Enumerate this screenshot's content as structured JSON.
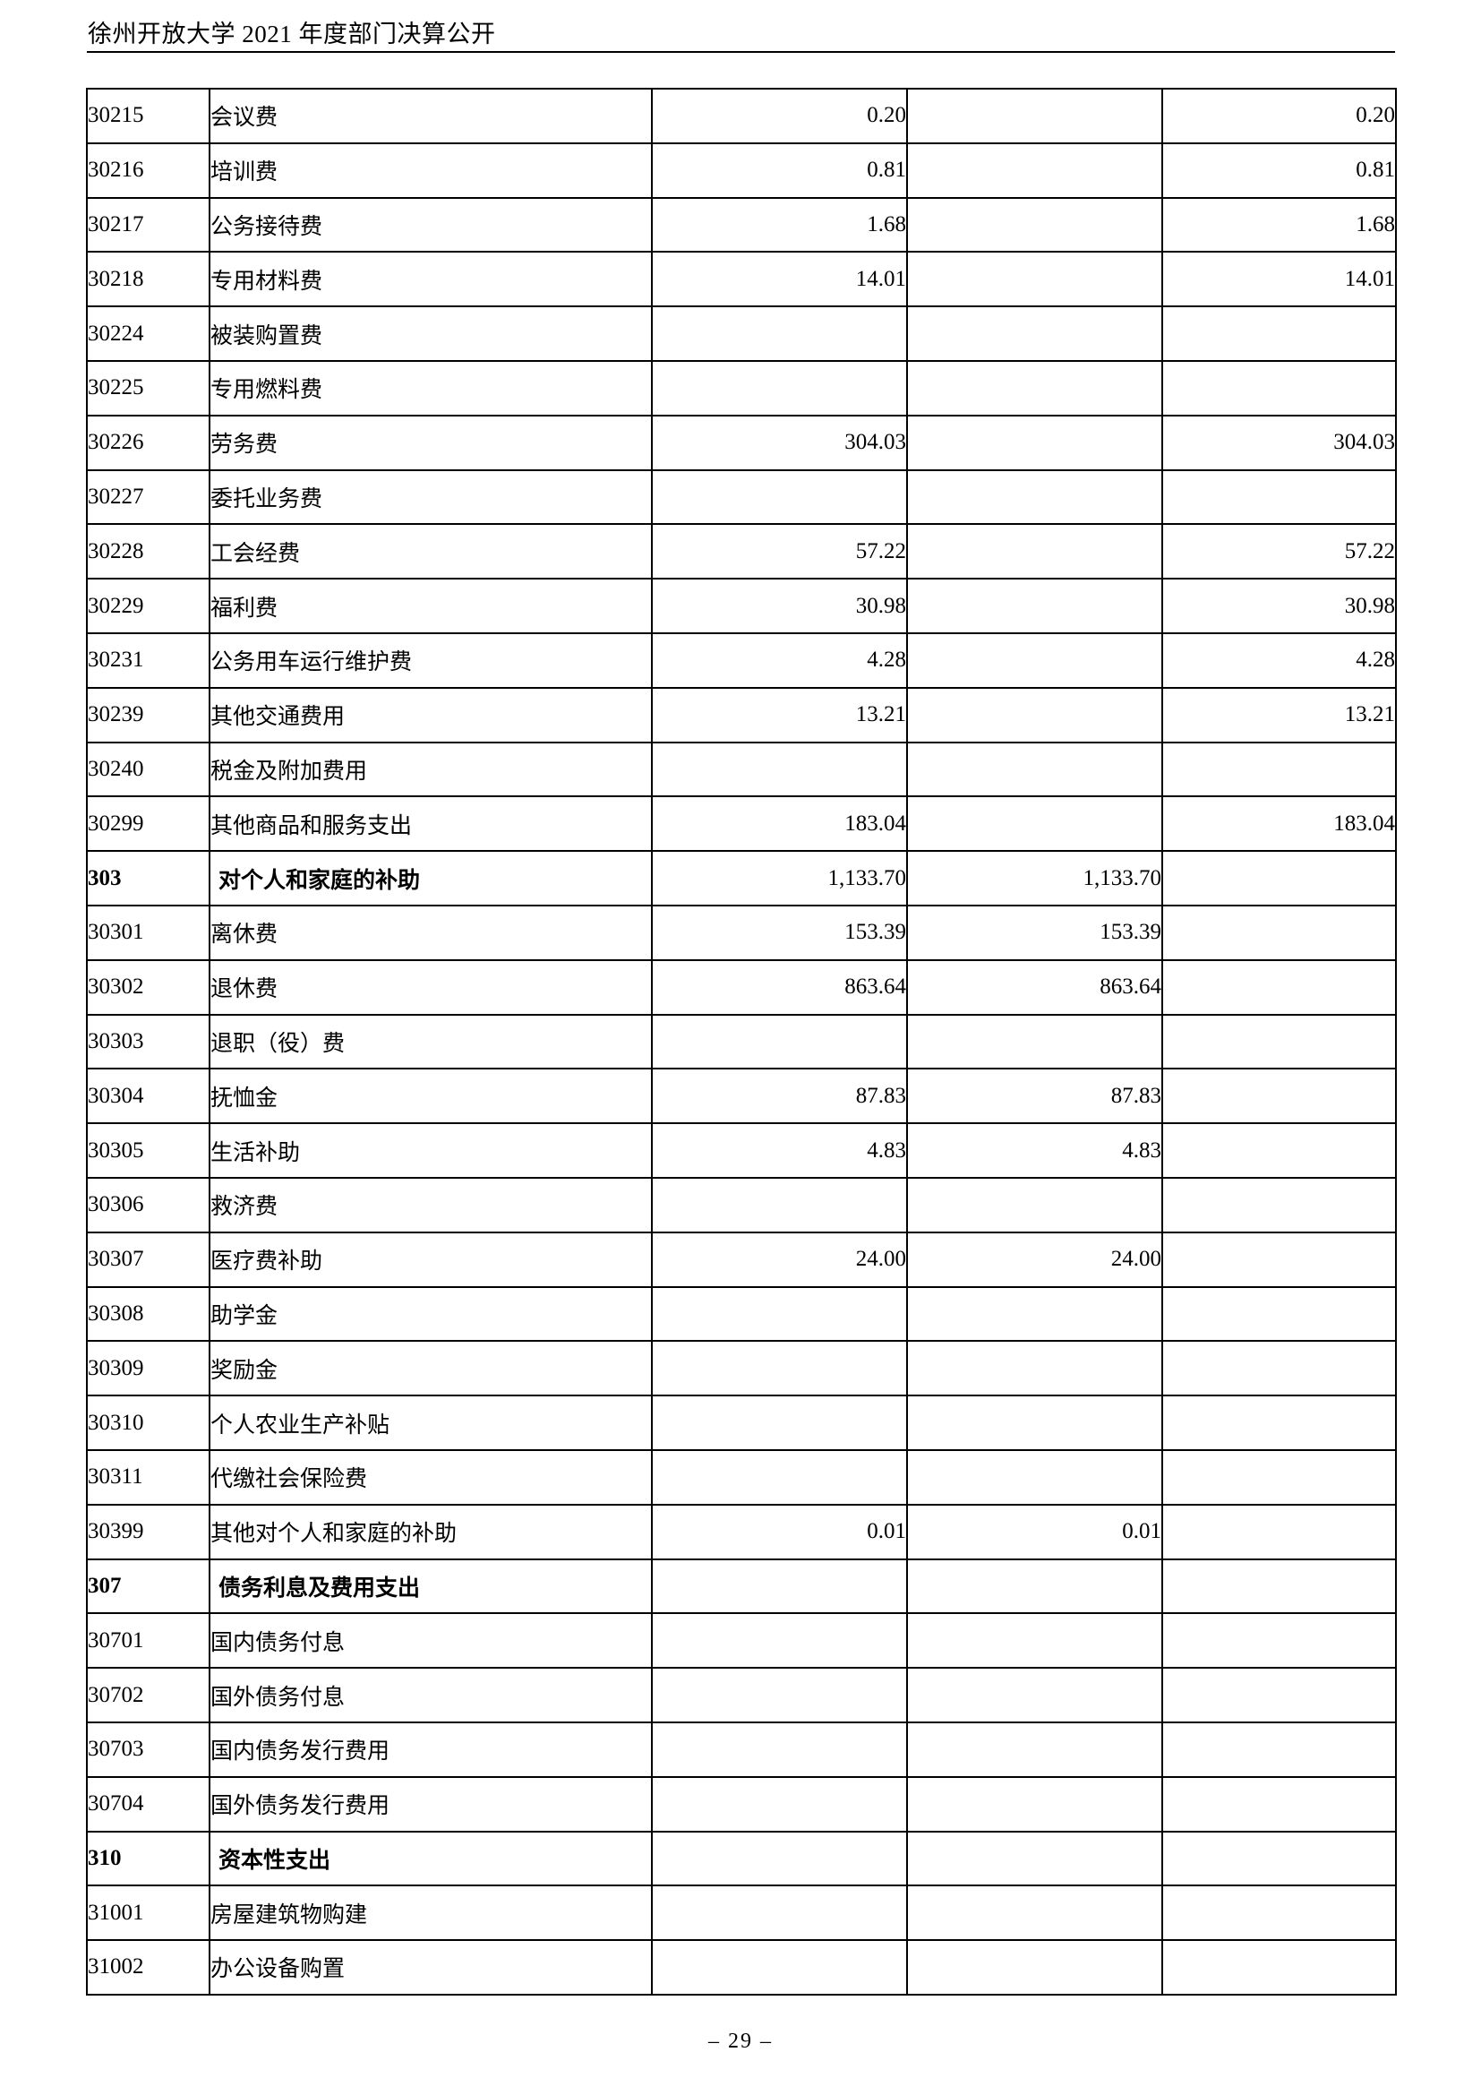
{
  "page": {
    "header_title": "徐州开放大学 2021 年度部门决算公开",
    "footer_page_number": "– 29 –"
  },
  "table": {
    "rows": [
      {
        "code": "30215",
        "name": "会议费",
        "v1": "0.20",
        "v2": "",
        "v3": "0.20",
        "section": false
      },
      {
        "code": "30216",
        "name": "培训费",
        "v1": "0.81",
        "v2": "",
        "v3": "0.81",
        "section": false
      },
      {
        "code": "30217",
        "name": "公务接待费",
        "v1": "1.68",
        "v2": "",
        "v3": "1.68",
        "section": false
      },
      {
        "code": "30218",
        "name": "专用材料费",
        "v1": "14.01",
        "v2": "",
        "v3": "14.01",
        "section": false
      },
      {
        "code": "30224",
        "name": "被装购置费",
        "v1": "",
        "v2": "",
        "v3": "",
        "section": false
      },
      {
        "code": "30225",
        "name": "专用燃料费",
        "v1": "",
        "v2": "",
        "v3": "",
        "section": false
      },
      {
        "code": "30226",
        "name": "劳务费",
        "v1": "304.03",
        "v2": "",
        "v3": "304.03",
        "section": false
      },
      {
        "code": "30227",
        "name": "委托业务费",
        "v1": "",
        "v2": "",
        "v3": "",
        "section": false
      },
      {
        "code": "30228",
        "name": "工会经费",
        "v1": "57.22",
        "v2": "",
        "v3": "57.22",
        "section": false
      },
      {
        "code": "30229",
        "name": "福利费",
        "v1": "30.98",
        "v2": "",
        "v3": "30.98",
        "section": false
      },
      {
        "code": "30231",
        "name": "公务用车运行维护费",
        "v1": "4.28",
        "v2": "",
        "v3": "4.28",
        "section": false
      },
      {
        "code": "30239",
        "name": "其他交通费用",
        "v1": "13.21",
        "v2": "",
        "v3": "13.21",
        "section": false
      },
      {
        "code": "30240",
        "name": "税金及附加费用",
        "v1": "",
        "v2": "",
        "v3": "",
        "section": false
      },
      {
        "code": "30299",
        "name": "其他商品和服务支出",
        "v1": "183.04",
        "v2": "",
        "v3": "183.04",
        "section": false
      },
      {
        "code": "303",
        "name": "对个人和家庭的补助",
        "v1": "1,133.70",
        "v2": "1,133.70",
        "v3": "",
        "section": true
      },
      {
        "code": "30301",
        "name": "离休费",
        "v1": "153.39",
        "v2": "153.39",
        "v3": "",
        "section": false
      },
      {
        "code": "30302",
        "name": "退休费",
        "v1": "863.64",
        "v2": "863.64",
        "v3": "",
        "section": false
      },
      {
        "code": "30303",
        "name": "退职（役）费",
        "v1": "",
        "v2": "",
        "v3": "",
        "section": false
      },
      {
        "code": "30304",
        "name": "抚恤金",
        "v1": "87.83",
        "v2": "87.83",
        "v3": "",
        "section": false
      },
      {
        "code": "30305",
        "name": "生活补助",
        "v1": "4.83",
        "v2": "4.83",
        "v3": "",
        "section": false
      },
      {
        "code": "30306",
        "name": "救济费",
        "v1": "",
        "v2": "",
        "v3": "",
        "section": false
      },
      {
        "code": "30307",
        "name": "医疗费补助",
        "v1": "24.00",
        "v2": "24.00",
        "v3": "",
        "section": false
      },
      {
        "code": "30308",
        "name": "助学金",
        "v1": "",
        "v2": "",
        "v3": "",
        "section": false
      },
      {
        "code": "30309",
        "name": "奖励金",
        "v1": "",
        "v2": "",
        "v3": "",
        "section": false
      },
      {
        "code": "30310",
        "name": "个人农业生产补贴",
        "v1": "",
        "v2": "",
        "v3": "",
        "section": false
      },
      {
        "code": "30311",
        "name": "代缴社会保险费",
        "v1": "",
        "v2": "",
        "v3": "",
        "section": false
      },
      {
        "code": "30399",
        "name": "其他对个人和家庭的补助",
        "v1": "0.01",
        "v2": "0.01",
        "v3": "",
        "section": false
      },
      {
        "code": "307",
        "name": "债务利息及费用支出",
        "v1": "",
        "v2": "",
        "v3": "",
        "section": true
      },
      {
        "code": "30701",
        "name": "国内债务付息",
        "v1": "",
        "v2": "",
        "v3": "",
        "section": false
      },
      {
        "code": "30702",
        "name": "国外债务付息",
        "v1": "",
        "v2": "",
        "v3": "",
        "section": false
      },
      {
        "code": "30703",
        "name": "国内债务发行费用",
        "v1": "",
        "v2": "",
        "v3": "",
        "section": false
      },
      {
        "code": "30704",
        "name": "国外债务发行费用",
        "v1": "",
        "v2": "",
        "v3": "",
        "section": false
      },
      {
        "code": "310",
        "name": "资本性支出",
        "v1": "",
        "v2": "",
        "v3": "",
        "section": true
      },
      {
        "code": "31001",
        "name": "房屋建筑物购建",
        "v1": "",
        "v2": "",
        "v3": "",
        "section": false
      },
      {
        "code": "31002",
        "name": "办公设备购置",
        "v1": "",
        "v2": "",
        "v3": "",
        "section": false
      }
    ]
  }
}
